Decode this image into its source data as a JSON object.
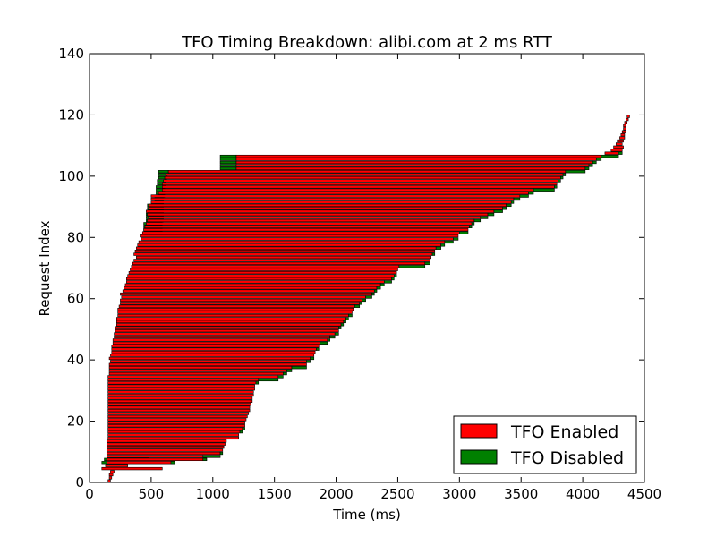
{
  "chart_data": {
    "type": "bar",
    "orientation": "horizontal",
    "title": "TFO Timing Breakdown: alibi.com at 2 ms RTT",
    "xlabel": "Time (ms)",
    "ylabel": "Request Index",
    "xlim": [
      0,
      4500
    ],
    "ylim": [
      0,
      140
    ],
    "xticks": [
      0,
      500,
      1000,
      1500,
      2000,
      2500,
      3000,
      3500,
      4000,
      4500
    ],
    "yticks": [
      0,
      20,
      40,
      60,
      80,
      100,
      120,
      140
    ],
    "legend_position": "lower-right",
    "colors": {
      "enabled": "#ff0000",
      "disabled": "#008000",
      "edge": "#000000"
    },
    "series": [
      {
        "name": "TFO Enabled",
        "color": "#ff0000",
        "starts": [
          150,
          160,
          160,
          170,
          100,
          130,
          140,
          140,
          140,
          140,
          140,
          140,
          140,
          140,
          150,
          150,
          150,
          150,
          150,
          150,
          150,
          150,
          150,
          150,
          150,
          150,
          150,
          150,
          150,
          150,
          150,
          150,
          150,
          150,
          150,
          160,
          160,
          160,
          160,
          170,
          160,
          170,
          180,
          180,
          180,
          190,
          190,
          200,
          200,
          210,
          210,
          220,
          220,
          220,
          230,
          230,
          230,
          240,
          250,
          250,
          260,
          250,
          270,
          280,
          290,
          300,
          300,
          310,
          320,
          330,
          340,
          350,
          360,
          380,
          360,
          370,
          380,
          390,
          400,
          420,
          410,
          430,
          440,
          450,
          460,
          470,
          480,
          470,
          460,
          480,
          480,
          500,
          500,
          500,
          560,
          590,
          590,
          590,
          600,
          610,
          620,
          640,
          1190,
          1190,
          1190,
          1190,
          1190,
          4180,
          4230,
          4250,
          4270,
          4280,
          4300,
          4310,
          4320,
          4330,
          4330,
          4340,
          4350,
          4360
        ],
        "ends": [
          170,
          180,
          190,
          200,
          590,
          310,
          690,
          950,
          920,
          1060,
          1080,
          1090,
          1100,
          1110,
          1210,
          1210,
          1220,
          1240,
          1260,
          1260,
          1270,
          1280,
          1290,
          1300,
          1300,
          1310,
          1320,
          1320,
          1330,
          1330,
          1340,
          1340,
          1350,
          1370,
          1530,
          1570,
          1600,
          1640,
          1760,
          1760,
          1790,
          1820,
          1830,
          1840,
          1860,
          1870,
          1930,
          1950,
          1990,
          2020,
          2020,
          2040,
          2060,
          2080,
          2100,
          2130,
          2140,
          2150,
          2190,
          2210,
          2240,
          2290,
          2310,
          2330,
          2360,
          2390,
          2450,
          2470,
          2490,
          2500,
          2510,
          2720,
          2760,
          2770,
          2780,
          2800,
          2810,
          2850,
          2880,
          2950,
          2990,
          3000,
          3070,
          3080,
          3100,
          3120,
          3170,
          3230,
          3280,
          3350,
          3380,
          3420,
          3440,
          3490,
          3560,
          3600,
          3770,
          3790,
          3800,
          3820,
          3840,
          3860,
          4020,
          4050,
          4080,
          4110,
          4150,
          4290,
          4320,
          4330,
          4320,
          4330,
          4340,
          4340,
          4350,
          4350,
          4350,
          4360,
          4370,
          4380
        ],
        "x": [
          [
            150,
            170
          ],
          [
            160,
            180
          ],
          [
            160,
            190
          ],
          [
            170,
            200
          ],
          [
            100,
            590
          ],
          [
            130,
            310
          ],
          [
            140,
            690
          ],
          [
            140,
            950
          ],
          [
            140,
            920
          ],
          [
            140,
            1060
          ],
          [
            140,
            1080
          ],
          [
            140,
            1090
          ],
          [
            140,
            1100
          ],
          [
            140,
            1110
          ],
          [
            150,
            1210
          ],
          [
            150,
            1210
          ]
        ]
      },
      {
        "name": "TFO Disabled",
        "color": "#008000",
        "starts": [
          0,
          0,
          0,
          0,
          0,
          0,
          660,
          920,
          920,
          1060,
          1080,
          1090,
          1100,
          1110,
          1210,
          1210,
          1220,
          1240,
          1260,
          1260,
          1270,
          1280,
          1290,
          1300,
          1300,
          1310,
          1320,
          1320,
          1330,
          1330,
          1340,
          1340,
          1350,
          1370,
          1530,
          1570,
          1600,
          1640,
          1760,
          1760,
          1790,
          1820,
          1830,
          1840,
          1860,
          1870,
          1930,
          1950,
          1990,
          2020,
          2020,
          2040,
          2060,
          2080,
          2100,
          2130,
          2140,
          2150,
          2190,
          2210,
          2240,
          2290,
          2310,
          2330,
          2360,
          2390,
          2450,
          2470,
          2490,
          2500,
          2510,
          2720,
          2760,
          2770,
          2780,
          2800,
          2810,
          2850,
          2880,
          2950,
          2990,
          3000,
          3070,
          3080,
          3100,
          3120,
          3170,
          3230,
          3280,
          3350,
          3380,
          3420,
          3440,
          3490,
          3560,
          3600,
          3770,
          3790,
          3800,
          3820,
          3840,
          3860,
          4020,
          4050,
          4080,
          4110,
          4150,
          4290,
          4320,
          4330,
          4320,
          4330,
          4340,
          4340,
          4350,
          4350,
          4350,
          4360,
          4370,
          4380
        ],
        "ends": [
          0,
          0,
          0,
          0,
          0,
          0,
          690,
          950,
          1060,
          1080,
          1090,
          1100,
          1110,
          1120,
          1210,
          1220,
          1240,
          1260,
          1260,
          1270,
          1280,
          1290,
          1300,
          1300,
          1310,
          1320,
          1320,
          1330,
          1330,
          1340,
          1340,
          1350,
          1370,
          1530,
          1570,
          1600,
          1640,
          1760,
          1760,
          1790,
          1820,
          1830,
          1840,
          1860,
          1870,
          1930,
          1950,
          1990,
          2020,
          2020,
          2040,
          2060,
          2080,
          2100,
          2130,
          2140,
          2150,
          2190,
          2210,
          2240,
          2290,
          2310,
          2330,
          2360,
          2390,
          2450,
          2470,
          2490,
          2500,
          2510,
          2720,
          2760,
          2770,
          2780,
          2800,
          2810,
          2850,
          2880,
          2950,
          2990,
          3000,
          3070,
          3080,
          3100,
          3120,
          3170,
          3230,
          3280,
          3350,
          3380,
          3420,
          3440,
          3490,
          3560,
          3600,
          3770,
          3790,
          3800,
          3820,
          3840,
          3860,
          4020,
          4050,
          4080,
          4110,
          4150,
          4290,
          4320,
          4330,
          4320,
          4330,
          4340,
          4340,
          4350,
          4350,
          4350,
          4360,
          4370,
          4380,
          4390
        ]
      }
    ],
    "disabled_prefix_rows": [
      {
        "index": 6,
        "x": [
          100,
          140
        ]
      },
      {
        "index": 7,
        "x": [
          120,
          480
        ]
      },
      {
        "index": 82,
        "x": [
          440,
          590
        ]
      },
      {
        "index": 83,
        "x": [
          440,
          590
        ]
      },
      {
        "index": 84,
        "x": [
          440,
          590
        ]
      },
      {
        "index": 85,
        "x": [
          460,
          600
        ]
      },
      {
        "index": 86,
        "x": [
          460,
          600
        ]
      },
      {
        "index": 87,
        "x": [
          460,
          600
        ]
      },
      {
        "index": 88,
        "x": [
          470,
          600
        ]
      },
      {
        "index": 89,
        "x": [
          470,
          600
        ]
      },
      {
        "index": 90,
        "x": [
          470,
          600
        ]
      },
      {
        "index": 91,
        "x": [
          530,
          600
        ]
      },
      {
        "index": 92,
        "x": [
          530,
          600
        ]
      },
      {
        "index": 93,
        "x": [
          530,
          610
        ]
      },
      {
        "index": 94,
        "x": [
          540,
          610
        ]
      },
      {
        "index": 95,
        "x": [
          540,
          610
        ]
      },
      {
        "index": 96,
        "x": [
          540,
          620
        ]
      },
      {
        "index": 97,
        "x": [
          550,
          620
        ]
      },
      {
        "index": 98,
        "x": [
          550,
          620
        ]
      },
      {
        "index": 99,
        "x": [
          560,
          630
        ]
      },
      {
        "index": 100,
        "x": [
          560,
          630
        ]
      },
      {
        "index": 101,
        "x": [
          560,
          640
        ]
      },
      {
        "index": 102,
        "x": [
          1060,
          1190
        ]
      },
      {
        "index": 103,
        "x": [
          1060,
          1190
        ]
      },
      {
        "index": 104,
        "x": [
          1060,
          1190
        ]
      },
      {
        "index": 105,
        "x": [
          1060,
          1190
        ]
      },
      {
        "index": 106,
        "x": [
          1060,
          1190
        ]
      }
    ]
  }
}
